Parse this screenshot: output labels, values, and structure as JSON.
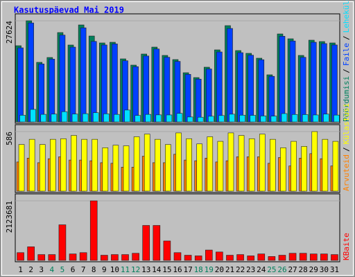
{
  "chart_data": [
    {
      "type": "bar",
      "title": "Kasutuspäevad Mai 2019",
      "legend_separator": "/",
      "ylim": [
        0,
        27624
      ],
      "yticks": [
        27624
      ],
      "series": [
        {
          "name": "Pöördumisi",
          "color": "#00805c",
          "values": [
            20812,
            27624,
            16271,
            17596,
            24407,
            21001,
            26488,
            23461,
            21569,
            21758,
            17217,
            15514,
            18541,
            20433,
            18163,
            17028,
            13433,
            12109,
            14947,
            19677,
            26299,
            19488,
            18731,
            17407,
            12866,
            24029,
            22704,
            18163,
            22326,
            21947,
            21569
          ]
        },
        {
          "name": "Faile",
          "color": "#0040ff",
          "values": [
            20236,
            27035,
            15830,
            17152,
            23712,
            20430,
            25701,
            21990,
            21012,
            21302,
            16703,
            15087,
            18006,
            19920,
            17660,
            16532,
            12990,
            11689,
            14458,
            19105,
            25534,
            18910,
            18222,
            16987,
            12451,
            23398,
            22103,
            17644,
            21760,
            21390,
            21018
          ]
        },
        {
          "name": "Lehekülgi",
          "color": "#00e0ff",
          "values": [
            1820,
            3410,
            2060,
            2130,
            2790,
            2150,
            2240,
            2510,
            2210,
            2050,
            3240,
            1760,
            2050,
            1920,
            1900,
            2320,
            1350,
            1280,
            1540,
            1740,
            2110,
            1840,
            1790,
            1620,
            1580,
            2270,
            2030,
            2000,
            1900,
            2130,
            1860
          ]
        }
      ]
    },
    {
      "type": "bar",
      "legend_separator": "/",
      "ylim": [
        0,
        586
      ],
      "yticks": [
        586
      ],
      "series": [
        {
          "name": "Arvuteid",
          "color": "#ff8000",
          "values": [
            287,
            325,
            280,
            319,
            338,
            306,
            306,
            299,
            280,
            274,
            236,
            236,
            344,
            280,
            280,
            363,
            306,
            299,
            325,
            287,
            299,
            338,
            338,
            338,
            274,
            331,
            248,
            325,
            369,
            319,
            248
          ]
        },
        {
          "name": "Külastusi",
          "color": "#ffff00",
          "values": [
            459,
            510,
            459,
            510,
            516,
            548,
            510,
            510,
            427,
            452,
            446,
            535,
            561,
            510,
            459,
            573,
            516,
            465,
            535,
            490,
            573,
            548,
            516,
            561,
            510,
            427,
            490,
            440,
            586,
            510,
            490
          ]
        }
      ]
    },
    {
      "type": "bar",
      "ylim": [
        0,
        2123681
      ],
      "yticks": [
        2123681
      ],
      "categories": [
        "1",
        "2",
        "3",
        "4",
        "5",
        "6",
        "7",
        "8",
        "9",
        "10",
        "11",
        "12",
        "13",
        "14",
        "15",
        "16",
        "17",
        "18",
        "19",
        "20",
        "21",
        "22",
        "23",
        "24",
        "25",
        "26",
        "27",
        "28",
        "29",
        "30",
        "31"
      ],
      "category_colors": [
        "#000000",
        "#000000",
        "#000000",
        "#00805c",
        "#00805c",
        "#000000",
        "#000000",
        "#000000",
        "#000000",
        "#000000",
        "#00805c",
        "#00805c",
        "#000000",
        "#000000",
        "#000000",
        "#000000",
        "#000000",
        "#00805c",
        "#00805c",
        "#000000",
        "#000000",
        "#000000",
        "#000000",
        "#000000",
        "#00805c",
        "#00805c",
        "#000000",
        "#000000",
        "#000000",
        "#000000",
        "#000000"
      ],
      "series": [
        {
          "name": "KBaite",
          "color": "#ff0000",
          "values": [
            277002,
            484754,
            207752,
            207752,
            1269593,
            230835,
            277002,
            2123681,
            184668,
            207752,
            207752,
            253919,
            1246509,
            1246509,
            692505,
            277002,
            184668,
            161585,
            369336,
            300086,
            184668,
            207752,
            161585,
            230835,
            138501,
            184668,
            253919,
            253919,
            230835,
            230835,
            207752
          ]
        }
      ]
    }
  ]
}
